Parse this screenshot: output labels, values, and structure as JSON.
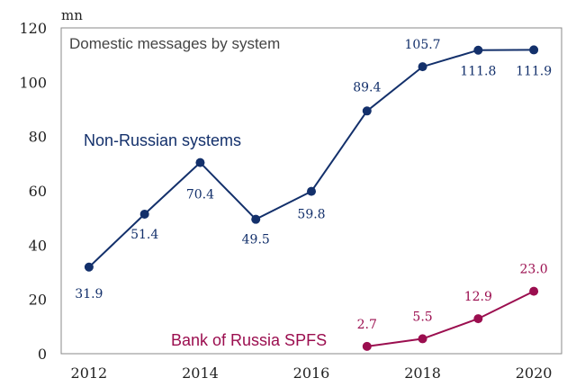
{
  "chart_data": {
    "type": "line",
    "title": "Domestic messages by system",
    "unit_label": "mn",
    "xlabel": "",
    "ylabel": "",
    "xlim": [
      2011.5,
      2020.5
    ],
    "ylim": [
      0,
      120
    ],
    "x_ticks": [
      2012,
      2014,
      2016,
      2018,
      2020
    ],
    "y_ticks": [
      0,
      20,
      40,
      60,
      80,
      100,
      120
    ],
    "grid": false,
    "legend": "none",
    "series": [
      {
        "name": "Non-Russian systems",
        "color": "#13306b",
        "x": [
          2012,
          2013,
          2014,
          2015,
          2016,
          2017,
          2018,
          2019,
          2020
        ],
        "values": [
          31.9,
          51.4,
          70.4,
          49.5,
          59.8,
          89.4,
          105.7,
          111.8,
          111.9
        ],
        "labels": [
          "31.9",
          "51.4",
          "70.4",
          "49.5",
          "59.8",
          "89.4",
          "105.7",
          "111.8",
          "111.9"
        ]
      },
      {
        "name": "Bank of Russia SPFS",
        "color": "#9b0e4f",
        "x": [
          2017,
          2018,
          2019,
          2020
        ],
        "values": [
          2.7,
          5.5,
          12.9,
          23.0
        ],
        "labels": [
          "2.7",
          "5.5",
          "12.9",
          "23.0"
        ]
      }
    ]
  }
}
